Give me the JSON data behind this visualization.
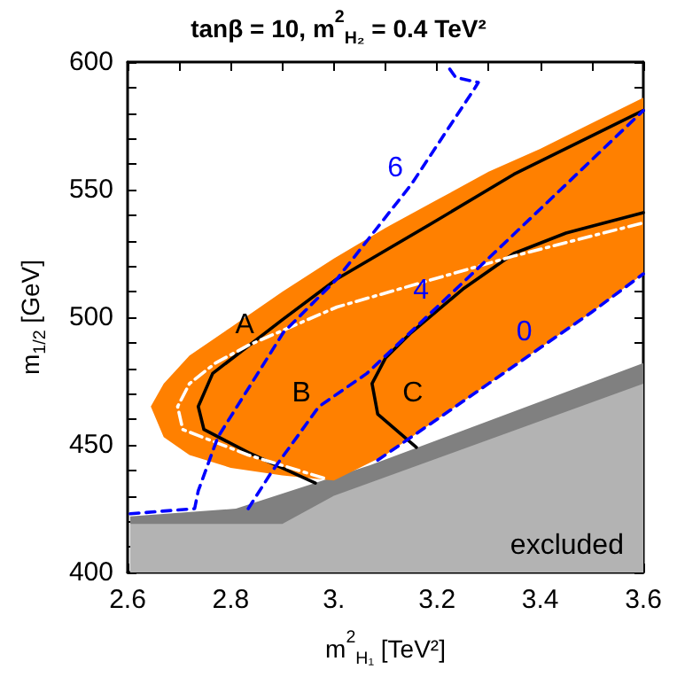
{
  "chart_data": {
    "type": "line",
    "title": "tanβ = 10, m$^{2}$$_{H₂}$ = 0.4 TeV²",
    "xlabel": "m$^{2}$$_{H₁}$ [TeV²]",
    "ylabel": "m$_{1/2}$ [GeV]",
    "xlim": [
      2.6,
      3.6
    ],
    "ylim": [
      400,
      600
    ],
    "xticks": [
      2.6,
      {
        "value": 2.7,
        "label": null
      },
      2.8,
      {
        "value": 2.9,
        "label": null
      },
      {
        "value": 3.0,
        "label": "3."
      },
      {
        "value": 3.1,
        "label": null
      },
      3.2,
      {
        "value": 3.3,
        "label": null
      },
      3.4,
      {
        "value": 3.5,
        "label": null
      },
      3.6
    ],
    "yticks": [
      400,
      {
        "value": 410,
        "label": null
      },
      {
        "value": 420,
        "label": null
      },
      {
        "value": 430,
        "label": null
      },
      {
        "value": 440,
        "label": null
      },
      450,
      {
        "value": 460,
        "label": null
      },
      {
        "value": 470,
        "label": null
      },
      {
        "value": 480,
        "label": null
      },
      {
        "value": 490,
        "label": null
      },
      500,
      {
        "value": 510,
        "label": null
      },
      {
        "value": 520,
        "label": null
      },
      {
        "value": 530,
        "label": null
      },
      {
        "value": 540,
        "label": null
      },
      550,
      {
        "value": 560,
        "label": null
      },
      {
        "value": 570,
        "label": null
      },
      {
        "value": 580,
        "label": null
      },
      {
        "value": 590,
        "label": null
      },
      600
    ],
    "grid": false,
    "series": [
      {
        "type": "area",
        "color": "#808080",
        "x": [
          2.605,
          2.81,
          3.07,
          3.6
        ],
        "values": [
          422,
          425,
          442,
          482
        ]
      },
      {
        "type": "area",
        "color": "#b3b3b3",
        "x": [
          2.605,
          2.9,
          3.0,
          3.6
        ],
        "values": [
          419,
          419,
          430,
          474
        ]
      },
      {
        "type": "area",
        "color": "#ff8000",
        "x": [
          2.645,
          2.67,
          2.72,
          2.8,
          2.9,
          3.0,
          3.1,
          3.2,
          3.3,
          3.4,
          3.5,
          3.6
        ],
        "values": [
          null,
          null,
          null,
          null,
          null,
          null,
          null,
          null,
          null,
          null,
          null,
          null
        ],
        "lower": [
          465,
          453,
          446,
          441,
          438,
          436,
          446,
          460,
          474,
          488,
          502,
          517
        ],
        "upper": [
          465,
          474,
          485,
          496,
          510,
          523,
          535,
          546,
          557,
          566,
          576,
          586
        ]
      },
      {
        "color": "#000000",
        "line_style": "solid",
        "x": [
          2.964,
          2.834,
          2.748,
          2.737,
          2.765,
          2.81,
          2.9,
          3.006,
          3.2,
          3.349,
          3.6
        ],
        "values": [
          435,
          447,
          456,
          465,
          478,
          485,
          499,
          515,
          538,
          556,
          581
        ]
      },
      {
        "color": "#000000",
        "line_style": "solid",
        "x": [
          3.16,
          3.085,
          3.074,
          3.1,
          3.15,
          3.25,
          3.349,
          3.45,
          3.6
        ],
        "values": [
          449,
          462,
          474,
          484,
          494,
          511,
          525,
          533,
          541
        ]
      },
      {
        "color": "#ffffff",
        "line_style": "dashdot",
        "x": [
          2.98,
          2.834,
          2.707,
          2.697,
          2.72,
          2.77,
          2.834,
          3.006,
          3.349,
          3.6
        ],
        "values": [
          437,
          446,
          456,
          465,
          474,
          482,
          489,
          504,
          524,
          537
        ]
      },
      {
        "name": "6",
        "color": "#0000ff",
        "line_style": "dashed",
        "x": [
          2.605,
          2.73,
          2.737,
          2.775,
          2.902,
          3.006,
          3.15,
          3.274,
          3.28,
          3.236,
          3.222
        ],
        "values": [
          423,
          425,
          432,
          453,
          494,
          515,
          552,
          590,
          592,
          594,
          598
        ]
      },
      {
        "name": "4",
        "color": "#0000ff",
        "line_style": "dashed",
        "x": [
          2.834,
          2.878,
          2.971,
          3.064,
          3.2,
          3.315,
          3.45,
          3.6
        ],
        "values": [
          425,
          439,
          465,
          478,
          504,
          526,
          552,
          581
        ]
      },
      {
        "name": "0",
        "color": "#0000ff",
        "line_style": "dashed",
        "x": [
          3.085,
          3.2,
          3.3,
          3.4,
          3.5,
          3.6
        ],
        "values": [
          444,
          460,
          474,
          488,
          502,
          517
        ]
      }
    ],
    "annotations": [
      {
        "text": "A",
        "x": 2.827,
        "y": 497
      },
      "B",
      "C",
      "excluded"
    ]
  }
}
